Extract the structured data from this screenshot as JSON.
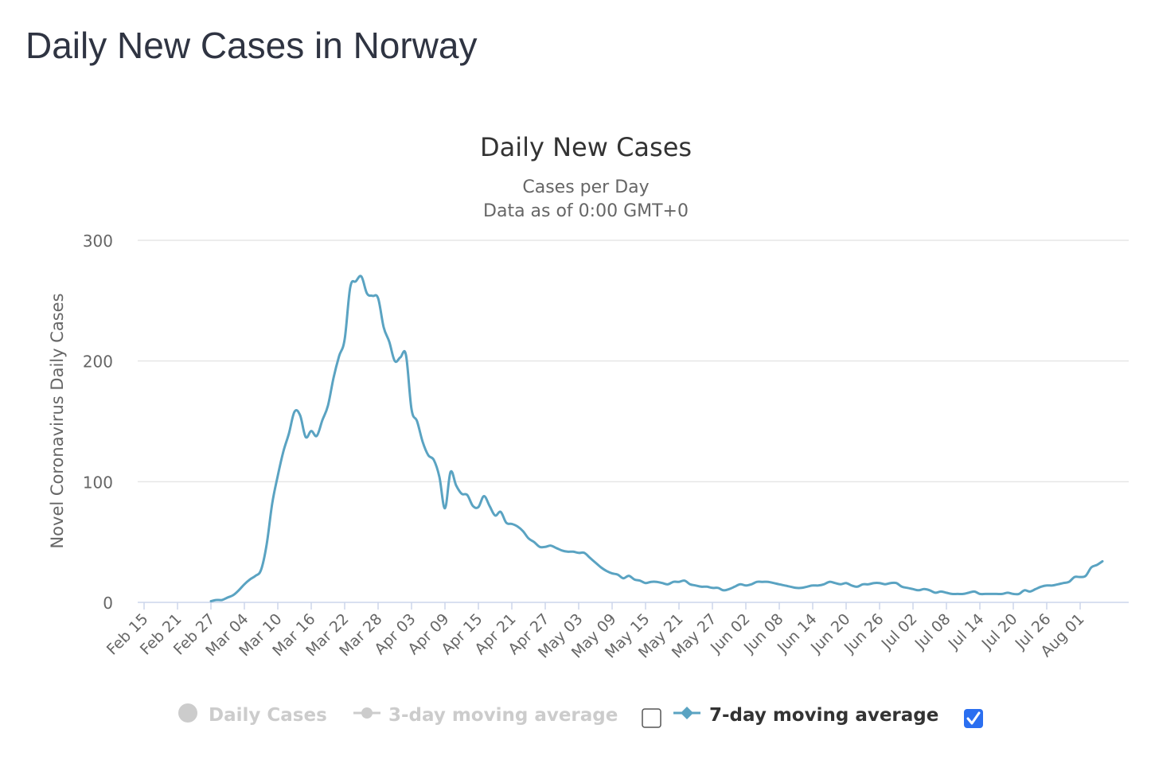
{
  "page": {
    "title": "Daily New Cases in Norway"
  },
  "chart_data": {
    "type": "line",
    "title": "Daily New Cases",
    "subtitle_lines": [
      "Cases per Day",
      "Data as of 0:00 GMT+0"
    ],
    "ylabel": "Novel Coronavirus Daily Cases",
    "xlabel": "",
    "ylim": [
      0,
      300
    ],
    "yticks": [
      0,
      100,
      200,
      300
    ],
    "grid": true,
    "categories_start": "Feb 15",
    "category_count": 176,
    "tick_labels": [
      "Feb 15",
      "Feb 21",
      "Feb 27",
      "Mar 04",
      "Mar 10",
      "Mar 16",
      "Mar 22",
      "Mar 28",
      "Apr 03",
      "Apr 09",
      "Apr 15",
      "Apr 21",
      "Apr 27",
      "May 03",
      "May 09",
      "May 15",
      "May 21",
      "May 27",
      "Jun 02",
      "Jun 08",
      "Jun 14",
      "Jun 20",
      "Jun 26",
      "Jul 02",
      "Jul 08",
      "Jul 14",
      "Jul 20",
      "Jul 26",
      "Aug 01"
    ],
    "tick_every": 6,
    "colors": {
      "series": "#5aa3c2",
      "legend_inactive": "#cccccc",
      "legend_active_text": "#333333",
      "checkbox_checked": "#2b6ff0",
      "grid": "#e6e6e6",
      "axis": "#ccd6eb",
      "tick_text": "#666666",
      "title": "#333333"
    },
    "series": [
      {
        "name": "7-day moving average",
        "start_index": 12,
        "values": [
          1,
          2,
          2,
          4,
          6,
          10,
          15,
          19,
          22,
          27,
          48,
          82,
          105,
          125,
          140,
          158,
          155,
          137,
          142,
          138,
          151,
          163,
          186,
          204,
          218,
          261,
          266,
          270,
          256,
          254,
          252,
          228,
          216,
          200,
          203,
          205,
          160,
          150,
          133,
          122,
          118,
          104,
          78,
          108,
          97,
          90,
          89,
          80,
          79,
          88,
          80,
          72,
          75,
          66,
          65,
          63,
          59,
          53,
          50,
          46,
          46,
          47,
          45,
          43,
          42,
          42,
          41,
          41,
          37,
          33,
          29,
          26,
          24,
          23,
          20,
          22,
          19,
          18,
          16,
          17,
          17,
          16,
          15,
          17,
          17,
          18,
          15,
          14,
          13,
          13,
          12,
          12,
          10,
          11,
          13,
          15,
          14,
          15,
          17,
          17,
          17,
          16,
          15,
          14,
          13,
          12,
          12,
          13,
          14,
          14,
          15,
          17,
          16,
          15,
          16,
          14,
          13,
          15,
          15,
          16,
          16,
          15,
          16,
          16,
          13,
          12,
          11,
          10,
          11,
          10,
          8,
          9,
          8,
          7,
          7,
          7,
          8,
          9,
          7,
          7,
          7,
          7,
          7,
          8,
          7,
          7,
          10,
          9,
          11,
          13,
          14,
          14,
          15,
          16,
          17,
          21,
          21,
          22,
          29,
          31,
          34
        ]
      }
    ],
    "legend": [
      {
        "name": "Daily Cases",
        "symbol": "circle",
        "active": false,
        "has_checkbox": false
      },
      {
        "name": "3-day moving average",
        "symbol": "line-circle",
        "active": false,
        "has_checkbox": true,
        "checked": false
      },
      {
        "name": "7-day moving average",
        "symbol": "line-diamond",
        "active": true,
        "has_checkbox": true,
        "checked": true
      }
    ]
  }
}
